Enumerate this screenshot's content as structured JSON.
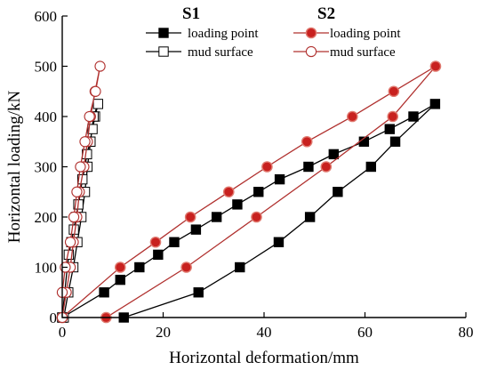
{
  "chart_data": {
    "type": "line",
    "xlabel": "Horizontal deformation/mm",
    "ylabel": "Horizontal loading/kN",
    "xlim": [
      0,
      80
    ],
    "ylim": [
      0,
      600
    ],
    "xticks": [
      "0",
      "20",
      "40",
      "60",
      "80"
    ],
    "yticks": [
      "0",
      "100",
      "200",
      "300",
      "400",
      "500",
      "600"
    ],
    "groups": [
      {
        "id": "s1",
        "title": "S1"
      },
      {
        "id": "s2",
        "title": "S2"
      }
    ],
    "series": [
      {
        "group": "s1",
        "name": "loading point",
        "color": "#000000",
        "marker": "square-filled",
        "points": [
          [
            0,
            0
          ],
          [
            8.3,
            50
          ],
          [
            11.5,
            75
          ],
          [
            15.3,
            100
          ],
          [
            19,
            125
          ],
          [
            22.2,
            150
          ],
          [
            26.5,
            175
          ],
          [
            30.6,
            200
          ],
          [
            34.7,
            225
          ],
          [
            38.9,
            250
          ],
          [
            43.1,
            275
          ],
          [
            48.8,
            300
          ],
          [
            53.8,
            325
          ],
          [
            59.8,
            350
          ],
          [
            64.9,
            375
          ],
          [
            69.6,
            400
          ],
          [
            73.9,
            425
          ],
          [
            66,
            350
          ],
          [
            61.2,
            300
          ],
          [
            54.6,
            250
          ],
          [
            49.1,
            200
          ],
          [
            42.9,
            150
          ],
          [
            35.2,
            100
          ],
          [
            27,
            50
          ],
          [
            12.2,
            0
          ]
        ]
      },
      {
        "group": "s1",
        "name": "mud surface",
        "color": "#000000",
        "marker": "square-open",
        "points": [
          [
            0,
            0
          ],
          [
            0.5,
            50
          ],
          [
            1,
            100
          ],
          [
            1.3,
            125
          ],
          [
            1.8,
            150
          ],
          [
            2.3,
            175
          ],
          [
            2.7,
            200
          ],
          [
            3.2,
            225
          ],
          [
            3.6,
            250
          ],
          [
            4,
            275
          ],
          [
            4.5,
            300
          ],
          [
            4.9,
            325
          ],
          [
            5.5,
            350
          ],
          [
            6,
            375
          ],
          [
            6.5,
            400
          ],
          [
            7.1,
            425
          ],
          [
            6.2,
            400
          ],
          [
            5.6,
            350
          ],
          [
            5,
            300
          ],
          [
            4.5,
            250
          ],
          [
            3.8,
            200
          ],
          [
            3,
            150
          ],
          [
            2.2,
            100
          ],
          [
            1.2,
            50
          ],
          [
            0.3,
            0
          ]
        ]
      },
      {
        "group": "s2",
        "name": "loading point",
        "color": "#b0302e",
        "marker": "circle-filled",
        "points": [
          [
            0,
            0
          ],
          [
            11.5,
            100
          ],
          [
            18.5,
            150
          ],
          [
            25.4,
            200
          ],
          [
            33,
            250
          ],
          [
            40.6,
            300
          ],
          [
            48.5,
            350
          ],
          [
            57.5,
            400
          ],
          [
            65.7,
            450
          ],
          [
            74,
            500
          ],
          [
            65.5,
            400
          ],
          [
            52.3,
            300
          ],
          [
            38.5,
            200
          ],
          [
            24.6,
            100
          ],
          [
            8.7,
            0
          ]
        ]
      },
      {
        "group": "s2",
        "name": "mud surface",
        "color": "#b0302e",
        "marker": "circle-open",
        "points": [
          [
            0,
            0
          ],
          [
            0.8,
            50
          ],
          [
            1.6,
            100
          ],
          [
            2.2,
            150
          ],
          [
            2.9,
            200
          ],
          [
            3.4,
            250
          ],
          [
            4.3,
            300
          ],
          [
            5,
            350
          ],
          [
            5.6,
            400
          ],
          [
            6.5,
            450
          ],
          [
            7.5,
            500
          ],
          [
            6.6,
            450
          ],
          [
            5.4,
            400
          ],
          [
            4.5,
            350
          ],
          [
            3.6,
            300
          ],
          [
            2.9,
            250
          ],
          [
            2.3,
            200
          ],
          [
            1.6,
            150
          ],
          [
            0.6,
            100
          ],
          [
            0,
            50
          ]
        ]
      }
    ]
  }
}
